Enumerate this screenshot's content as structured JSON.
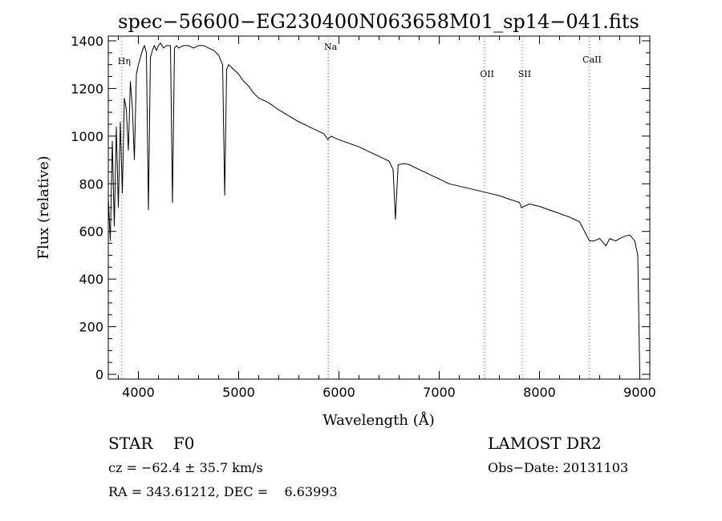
{
  "chart_data": {
    "type": "line",
    "title": "spec−56600−EG230400N063658M01_sp14−041.fits",
    "xlabel": "Wavelength (Å)",
    "ylabel": "Flux (relative)",
    "xlim": [
      3700,
      9100
    ],
    "ylim": [
      -20,
      1420
    ],
    "xticks": [
      4000,
      5000,
      6000,
      7000,
      8000,
      9000
    ],
    "yticks": [
      0,
      200,
      400,
      600,
      800,
      1000,
      1200,
      1400
    ],
    "grid": false,
    "series": [
      {
        "x": [
          3700,
          3720,
          3740,
          3760,
          3780,
          3800,
          3820,
          3840,
          3860,
          3880,
          3900,
          3920,
          3940,
          3960,
          3980,
          4000,
          4020,
          4040,
          4060,
          4080,
          4100,
          4120,
          4140,
          4160,
          4180,
          4200,
          4220,
          4250,
          4280,
          4300,
          4320,
          4340,
          4360,
          4380,
          4400,
          4450,
          4500,
          4550,
          4600,
          4650,
          4700,
          4750,
          4800,
          4840,
          4861,
          4880,
          4900,
          4950,
          5000,
          5050,
          5100,
          5150,
          5200,
          5300,
          5400,
          5500,
          5600,
          5700,
          5800,
          5850,
          5890,
          5896,
          5920,
          6000,
          6100,
          6200,
          6300,
          6400,
          6500,
          6540,
          6563,
          6590,
          6650,
          6700,
          6800,
          6900,
          7000,
          7100,
          7200,
          7300,
          7400,
          7500,
          7600,
          7700,
          7800,
          7820,
          7900,
          8000,
          8100,
          8200,
          8300,
          8400,
          8498,
          8542,
          8600,
          8662,
          8700,
          8760,
          8800,
          8850,
          8900,
          8950,
          8980,
          9000
        ],
        "y": [
          740,
          560,
          980,
          620,
          1040,
          700,
          1060,
          760,
          1160,
          1110,
          940,
          1230,
          1120,
          900,
          1260,
          1300,
          1330,
          1360,
          1380,
          1350,
          690,
          1330,
          1360,
          1380,
          1360,
          1380,
          1390,
          1370,
          1380,
          1380,
          1380,
          720,
          1370,
          1380,
          1370,
          1380,
          1380,
          1370,
          1380,
          1380,
          1370,
          1360,
          1340,
          1300,
          750,
          1280,
          1300,
          1280,
          1260,
          1230,
          1210,
          1180,
          1160,
          1140,
          1110,
          1085,
          1060,
          1040,
          1020,
          1010,
          985,
          990,
          1000,
          985,
          970,
          955,
          935,
          915,
          895,
          860,
          650,
          880,
          885,
          880,
          860,
          840,
          820,
          800,
          790,
          780,
          770,
          760,
          750,
          735,
          722,
          700,
          715,
          705,
          690,
          675,
          660,
          640,
          560,
          560,
          570,
          540,
          570,
          560,
          570,
          580,
          585,
          560,
          500,
          0
        ]
      }
    ],
    "lines": [
      {
        "label": "Hη",
        "x": 3835
      },
      {
        "label": "Na",
        "x": 5893
      },
      {
        "label": "OII",
        "x": 7453
      },
      {
        "label": "SII",
        "x": 7828
      },
      {
        "label": "CaII",
        "x": 8500
      }
    ]
  },
  "footer": {
    "object": "STAR    F0",
    "cz": "cz = −62.4 ± 35.7 km/s",
    "coords": "RA = 343.61212, DEC =    6.63993",
    "survey": "LAMOST DR2",
    "obs_date": "Obs−Date: 20131103"
  }
}
